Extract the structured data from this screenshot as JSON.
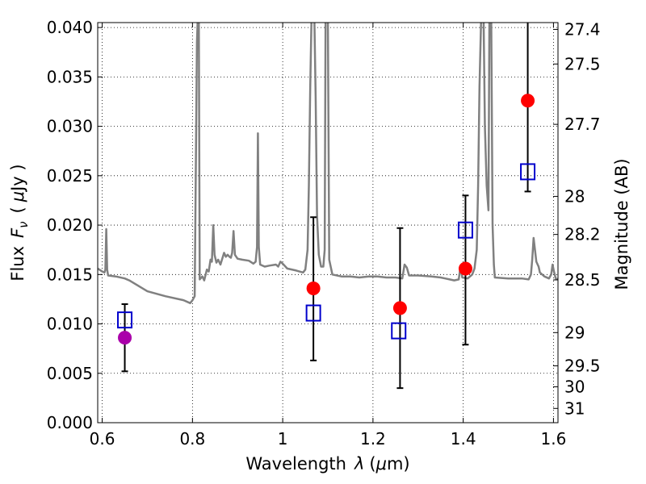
{
  "chart_data": {
    "type": "scatter",
    "xlabel_text": "Wavelength",
    "xlabel_symbol": "λ",
    "xlabel_unit_open": "(",
    "xlabel_unit_mu": "μ",
    "xlabel_unit_close": "m)",
    "ylabel_text": "Flux",
    "ylabel_symbol": "F",
    "ylabel_subscript": "ν",
    "ylabel_unit_open": "(",
    "ylabel_unit_mu": "μ",
    "ylabel_unit_close": "Jy )",
    "y2label": "Magnitude (AB)",
    "xlim": [
      0.59,
      1.61
    ],
    "ylim": [
      0.0,
      0.0405
    ],
    "grid": true,
    "x_ticks": [
      0.6,
      0.8,
      1.0,
      1.2,
      1.4,
      1.6
    ],
    "x_tick_labels": [
      "0.6",
      "0.8",
      "1",
      "1.2",
      "1.4",
      "1.6"
    ],
    "y_ticks": [
      0.0,
      0.005,
      0.01,
      0.015,
      0.02,
      0.025,
      0.03,
      0.035,
      0.04
    ],
    "y_tick_labels": [
      "0.000",
      "0.005",
      "0.010",
      "0.015",
      "0.020",
      "0.025",
      "0.030",
      "0.035",
      "0.040"
    ],
    "mag_ticks": [
      {
        "mag": 27.4,
        "label": "27.4"
      },
      {
        "mag": 27.5,
        "label": "27.5"
      },
      {
        "mag": 27.7,
        "label": "27.7"
      },
      {
        "mag": 28,
        "label": "28"
      },
      {
        "mag": 28.2,
        "label": "28.2"
      },
      {
        "mag": 28.5,
        "label": "28.5"
      },
      {
        "mag": 29,
        "label": "29"
      },
      {
        "mag": 29.5,
        "label": "29.5"
      },
      {
        "mag": 30,
        "label": "30"
      },
      {
        "mag": 31,
        "label": "31"
      }
    ],
    "template_spectrum": {
      "color": "#808080",
      "points": [
        [
          0.59,
          0.0156
        ],
        [
          0.6,
          0.0153
        ],
        [
          0.605,
          0.0152
        ],
        [
          0.607,
          0.0155
        ],
        [
          0.609,
          0.0196
        ],
        [
          0.611,
          0.0155
        ],
        [
          0.613,
          0.0149
        ],
        [
          0.63,
          0.0148
        ],
        [
          0.65,
          0.0146
        ],
        [
          0.66,
          0.0144
        ],
        [
          0.7,
          0.0133
        ],
        [
          0.74,
          0.0128
        ],
        [
          0.78,
          0.0124
        ],
        [
          0.795,
          0.0121
        ],
        [
          0.8,
          0.0124
        ],
        [
          0.805,
          0.0128
        ],
        [
          0.81,
          0.0385
        ],
        [
          0.812,
          0.0415
        ],
        [
          0.814,
          0.0415
        ],
        [
          0.816,
          0.0145
        ],
        [
          0.822,
          0.0148
        ],
        [
          0.826,
          0.0144
        ],
        [
          0.832,
          0.0155
        ],
        [
          0.836,
          0.0153
        ],
        [
          0.84,
          0.0165
        ],
        [
          0.843,
          0.0163
        ],
        [
          0.846,
          0.02
        ],
        [
          0.849,
          0.017
        ],
        [
          0.853,
          0.0162
        ],
        [
          0.857,
          0.0165
        ],
        [
          0.862,
          0.016
        ],
        [
          0.87,
          0.0172
        ],
        [
          0.874,
          0.0168
        ],
        [
          0.878,
          0.017
        ],
        [
          0.882,
          0.0168
        ],
        [
          0.885,
          0.0167
        ],
        [
          0.888,
          0.0172
        ],
        [
          0.891,
          0.0194
        ],
        [
          0.894,
          0.017
        ],
        [
          0.9,
          0.0166
        ],
        [
          0.91,
          0.0165
        ],
        [
          0.925,
          0.0164
        ],
        [
          0.935,
          0.0161
        ],
        [
          0.94,
          0.0163
        ],
        [
          0.943,
          0.0178
        ],
        [
          0.945,
          0.0293
        ],
        [
          0.947,
          0.0178
        ],
        [
          0.95,
          0.016
        ],
        [
          0.96,
          0.0158
        ],
        [
          0.97,
          0.0159
        ],
        [
          0.985,
          0.016
        ],
        [
          0.99,
          0.0158
        ],
        [
          0.995,
          0.0163
        ],
        [
          1.0,
          0.0161
        ],
        [
          1.01,
          0.0156
        ],
        [
          1.03,
          0.0154
        ],
        [
          1.045,
          0.0152
        ],
        [
          1.05,
          0.0155
        ],
        [
          1.055,
          0.0175
        ],
        [
          1.058,
          0.024
        ],
        [
          1.061,
          0.034
        ],
        [
          1.064,
          0.0415
        ],
        [
          1.07,
          0.0415
        ],
        [
          1.073,
          0.033
        ],
        [
          1.076,
          0.021
        ],
        [
          1.08,
          0.017
        ],
        [
          1.085,
          0.0158
        ],
        [
          1.09,
          0.0158
        ],
        [
          1.093,
          0.0175
        ],
        [
          1.095,
          0.0415
        ],
        [
          1.1,
          0.0415
        ],
        [
          1.103,
          0.0165
        ],
        [
          1.11,
          0.015
        ],
        [
          1.13,
          0.0148
        ],
        [
          1.15,
          0.0148
        ],
        [
          1.17,
          0.0147
        ],
        [
          1.19,
          0.0148
        ],
        [
          1.21,
          0.0148
        ],
        [
          1.23,
          0.0147
        ],
        [
          1.25,
          0.0147
        ],
        [
          1.265,
          0.0146
        ],
        [
          1.27,
          0.016
        ],
        [
          1.275,
          0.0157
        ],
        [
          1.28,
          0.0149
        ],
        [
          1.3,
          0.0149
        ],
        [
          1.33,
          0.0148
        ],
        [
          1.35,
          0.0147
        ],
        [
          1.36,
          0.0146
        ],
        [
          1.37,
          0.0145
        ],
        [
          1.38,
          0.0144
        ],
        [
          1.39,
          0.0145
        ],
        [
          1.394,
          0.0158
        ],
        [
          1.398,
          0.0147
        ],
        [
          1.41,
          0.0146
        ],
        [
          1.42,
          0.015
        ],
        [
          1.425,
          0.0156
        ],
        [
          1.43,
          0.0175
        ],
        [
          1.433,
          0.024
        ],
        [
          1.436,
          0.034
        ],
        [
          1.44,
          0.0415
        ],
        [
          1.445,
          0.0415
        ],
        [
          1.448,
          0.03
        ],
        [
          1.452,
          0.024
        ],
        [
          1.456,
          0.0215
        ],
        [
          1.458,
          0.0415
        ],
        [
          1.462,
          0.0415
        ],
        [
          1.465,
          0.02
        ],
        [
          1.468,
          0.016
        ],
        [
          1.47,
          0.0147
        ],
        [
          1.5,
          0.0146
        ],
        [
          1.53,
          0.0146
        ],
        [
          1.545,
          0.0145
        ],
        [
          1.55,
          0.015
        ],
        [
          1.553,
          0.0165
        ],
        [
          1.556,
          0.0187
        ],
        [
          1.559,
          0.0175
        ],
        [
          1.562,
          0.0163
        ],
        [
          1.567,
          0.0158
        ],
        [
          1.57,
          0.0152
        ],
        [
          1.58,
          0.0148
        ],
        [
          1.59,
          0.0146
        ],
        [
          1.595,
          0.015
        ],
        [
          1.598,
          0.016
        ],
        [
          1.601,
          0.0153
        ],
        [
          1.605,
          0.0146
        ],
        [
          1.61,
          0.0145
        ]
      ]
    },
    "series": [
      {
        "marker": "square-open",
        "color": "#0000cc",
        "points": [
          [
            0.65,
            0.0104
          ],
          [
            1.068,
            0.0111
          ],
          [
            1.257,
            0.0093
          ],
          [
            1.405,
            0.0195
          ],
          [
            1.543,
            0.0254
          ]
        ]
      },
      {
        "marker": "circle-filled",
        "color": "#ff0000",
        "points": [
          [
            1.068,
            0.0136
          ],
          [
            1.26,
            0.0116
          ],
          [
            1.405,
            0.0156
          ],
          [
            1.543,
            0.0326
          ]
        ]
      },
      {
        "marker": "circle-filled",
        "color": "#aa00aa",
        "points": [
          [
            0.65,
            0.0086
          ]
        ]
      }
    ],
    "errorbars": [
      {
        "x": 0.65,
        "low": 0.0052,
        "high": 0.012
      },
      {
        "x": 1.068,
        "low": 0.0063,
        "high": 0.0208
      },
      {
        "x": 1.26,
        "low": 0.0035,
        "high": 0.0197
      },
      {
        "x": 1.405,
        "low": 0.0079,
        "high": 0.023
      },
      {
        "x": 1.543,
        "low": 0.0234,
        "high": 0.0415
      }
    ]
  }
}
